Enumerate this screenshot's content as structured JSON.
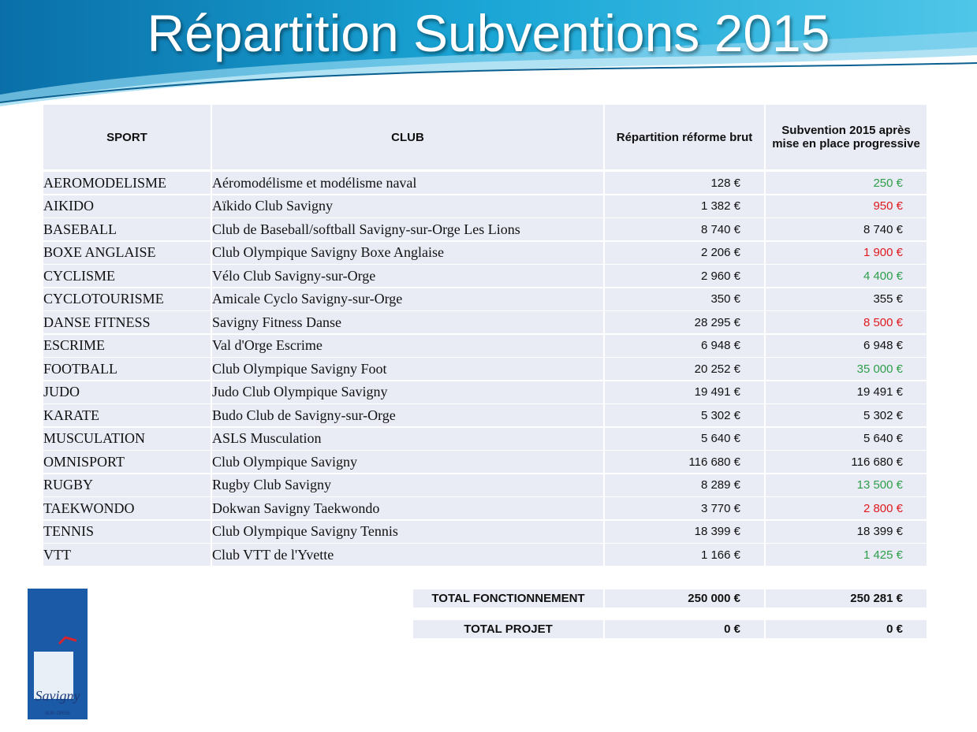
{
  "header": {
    "title": "Répartition Subventions 2015"
  },
  "table": {
    "columns": [
      "SPORT",
      "CLUB",
      "Répartition réforme brut",
      "Subvention 2015 après mise en place progressive"
    ],
    "rows": [
      {
        "sport": "AEROMODELISME",
        "club": "Aéromodélisme et modélisme naval",
        "brut": "128 €",
        "subvention": "250 €",
        "color": "#2e9e4a"
      },
      {
        "sport": "AIKIDO",
        "club": "Aïkido Club Savigny",
        "brut": "1 382 €",
        "subvention": "950 €",
        "color": "#e0191e"
      },
      {
        "sport": "BASEBALL",
        "club": "Club de Baseball/softball Savigny-sur-Orge Les Lions",
        "brut": "8 740 €",
        "subvention": "8 740 €",
        "color": "#111111"
      },
      {
        "sport": "BOXE ANGLAISE",
        "club": "Club Olympique Savigny Boxe Anglaise",
        "brut": "2 206 €",
        "subvention": "1 900 €",
        "color": "#e0191e"
      },
      {
        "sport": "CYCLISME",
        "club": "Vélo Club Savigny-sur-Orge",
        "brut": "2 960 €",
        "subvention": "4 400 €",
        "color": "#2e9e4a"
      },
      {
        "sport": "CYCLOTOURISME",
        "club": "Amicale Cyclo Savigny-sur-Orge",
        "brut": "350 €",
        "subvention": "355 €",
        "color": "#111111"
      },
      {
        "sport": "DANSE FITNESS",
        "club": "Savigny Fitness Danse",
        "brut": "28 295 €",
        "subvention": "8 500 €",
        "color": "#e0191e"
      },
      {
        "sport": "ESCRIME",
        "club": "Val d'Orge Escrime",
        "brut": "6 948 €",
        "subvention": "6 948 €",
        "color": "#111111"
      },
      {
        "sport": "FOOTBALL",
        "club": "Club Olympique Savigny Foot",
        "brut": "20 252 €",
        "subvention": "35 000 €",
        "color": "#2e9e4a"
      },
      {
        "sport": "JUDO",
        "club": "Judo Club Olympique Savigny",
        "brut": "19 491 €",
        "subvention": "19 491 €",
        "color": "#111111"
      },
      {
        "sport": "KARATE",
        "club": "Budo Club de Savigny-sur-Orge",
        "brut": "5 302 €",
        "subvention": "5 302 €",
        "color": "#111111"
      },
      {
        "sport": "MUSCULATION",
        "club": "ASLS Musculation",
        "brut": "5 640 €",
        "subvention": "5 640 €",
        "color": "#111111"
      },
      {
        "sport": "OMNISPORT",
        "club": "Club Olympique Savigny",
        "brut": "116 680 €",
        "subvention": "116 680 €",
        "color": "#111111"
      },
      {
        "sport": "RUGBY",
        "club": "Rugby Club Savigny",
        "brut": "8 289 €",
        "subvention": "13 500 €",
        "color": "#2e9e4a"
      },
      {
        "sport": "TAEKWONDO",
        "club": "Dokwan Savigny Taekwondo",
        "brut": "3 770 €",
        "subvention": "2 800 €",
        "color": "#e0191e"
      },
      {
        "sport": "TENNIS",
        "club": "Club Olympique Savigny Tennis",
        "brut": "18 399 €",
        "subvention": "18 399 €",
        "color": "#111111"
      },
      {
        "sport": "VTT",
        "club": "Club VTT de l'Yvette",
        "brut": "1 166 €",
        "subvention": "1 425 €",
        "color": "#2e9e4a"
      }
    ]
  },
  "totals": [
    {
      "label": "TOTAL FONCTIONNEMENT",
      "brut": "250 000 €",
      "subvention": "250 281 €"
    },
    {
      "label": "TOTAL PROJET",
      "brut": "0 €",
      "subvention": "0 €"
    }
  ],
  "logo": {
    "name": "Savigny",
    "sub": "SUR-ORGE"
  }
}
